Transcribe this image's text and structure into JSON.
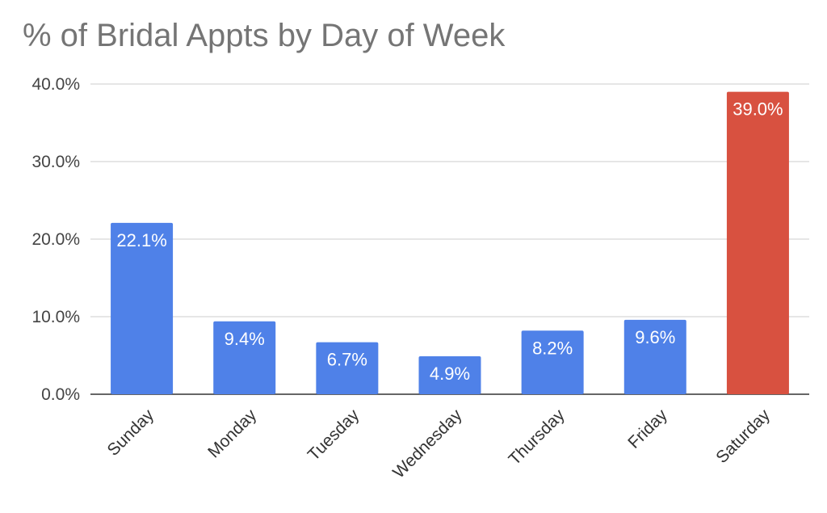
{
  "chart_data": {
    "type": "bar",
    "title": "% of Bridal Appts by Day of Week",
    "xlabel": "",
    "ylabel": "",
    "categories": [
      "Sunday",
      "Monday",
      "Tuesday",
      "Wednesday",
      "Thursday",
      "Friday",
      "Saturday"
    ],
    "values": [
      22.1,
      9.4,
      6.7,
      4.9,
      8.2,
      9.6,
      39.0
    ],
    "data_labels": [
      "22.1%",
      "9.4%",
      "6.7%",
      "4.9%",
      "8.2%",
      "9.6%",
      "39.0%"
    ],
    "ylim": [
      0,
      40
    ],
    "yticks": [
      0,
      10,
      20,
      30,
      40
    ],
    "ytick_labels": [
      "0.0%",
      "10.0%",
      "20.0%",
      "30.0%",
      "40.0%"
    ],
    "colors": [
      "#4f81e8",
      "#4f81e8",
      "#4f81e8",
      "#4f81e8",
      "#4f81e8",
      "#4f81e8",
      "#d85140"
    ],
    "grid": true,
    "legend": "none"
  }
}
